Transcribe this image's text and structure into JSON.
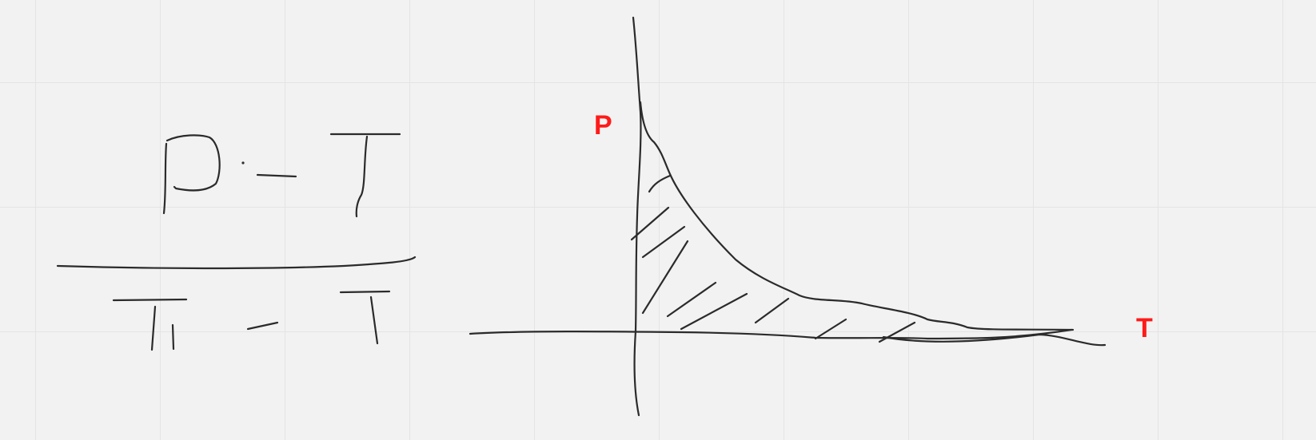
{
  "canvas": {
    "background": "#f2f2f2",
    "grid_color": "#e4e4e4",
    "ink_color": "#2b2b2b"
  },
  "graph": {
    "y_axis_label": "P",
    "x_axis_label": "T",
    "label_color": "#ff1a1a"
  }
}
